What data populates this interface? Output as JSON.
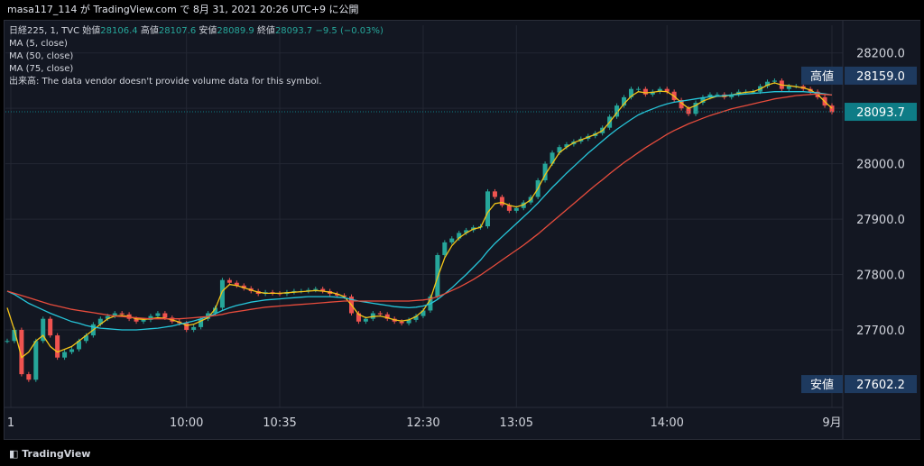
{
  "header": {
    "publish_line": "masa117_114 が TradingView.com で 8月 31, 2021 20:26 UTC+9 に公開"
  },
  "legend": {
    "symbol": "日経225, 1, TVC",
    "open_label": "始値",
    "open_value": "28106.4",
    "high_label": "高値",
    "high_value": "28107.6",
    "low_label": "安値",
    "low_value": "28089.9",
    "close_label": "終値",
    "close_value": "28093.7",
    "change": "−9.5 (−0.03%)",
    "ma5": "MA (5, close)",
    "ma50": "MA (50, close)",
    "ma75": "MA (75, close)",
    "volume_note": "出来高: The data vendor doesn't provide volume data for this symbol."
  },
  "price_labels": {
    "high_tag": "高値",
    "high_value": "28159.0",
    "last_value": "28093.7",
    "low_tag": "安値",
    "low_value": "27602.2"
  },
  "brand": {
    "name": "TradingView"
  },
  "colors": {
    "background": "#131722",
    "grid": "#232733",
    "up": "#26a69a",
    "down": "#ef5350",
    "ma5": "#f5c518",
    "ma50": "#26c6da",
    "ma75": "#e74c3c",
    "tag_bg": "#1e3a5f",
    "last_bg": "#0e7c86"
  },
  "chart_data": {
    "type": "candlestick",
    "title": "",
    "xlabel": "",
    "ylabel": "",
    "ylim": [
      27560,
      28250
    ],
    "y_ticks": [
      "28200.0",
      "28100.0",
      "28000.0",
      "27900.0",
      "27800.0",
      "27700.0"
    ],
    "x_ticks": [
      "1",
      "10:00",
      "10:35",
      "12:30",
      "13:05",
      "14:00",
      "9月"
    ],
    "grid": true,
    "series": [
      {
        "name": "日経225",
        "kind": "price",
        "x": [
          0,
          8,
          16,
          24,
          32,
          40,
          48,
          56,
          64,
          72,
          80,
          88,
          96,
          104,
          112,
          120,
          128,
          136,
          144,
          152,
          160,
          168,
          176,
          184,
          192,
          200,
          208,
          216,
          224,
          232,
          240,
          248,
          256,
          264,
          272,
          280,
          288,
          296,
          304,
          312,
          320,
          328,
          336,
          344,
          352,
          360,
          368,
          376,
          384,
          392,
          400,
          408,
          416,
          424,
          432,
          440,
          448,
          456,
          464,
          472,
          480,
          488,
          496,
          504,
          512,
          520,
          528,
          536,
          544,
          552,
          560,
          568,
          576,
          584,
          592,
          600,
          608,
          616,
          624,
          632,
          640,
          648,
          656,
          664,
          672,
          680,
          688,
          696,
          704,
          712,
          720,
          728,
          736,
          744,
          752,
          760,
          768,
          776,
          784,
          792,
          800,
          808,
          816,
          824,
          832,
          840,
          848,
          856,
          864,
          872,
          880,
          888,
          896,
          904,
          912,
          920
        ],
        "values": [
          27680,
          27700,
          27620,
          27610,
          27680,
          27720,
          27690,
          27650,
          27660,
          27665,
          27680,
          27690,
          27710,
          27720,
          27725,
          27730,
          27728,
          27720,
          27715,
          27718,
          27725,
          27730,
          27722,
          27715,
          27712,
          27700,
          27705,
          27720,
          27730,
          27740,
          27790,
          27785,
          27780,
          27775,
          27770,
          27765,
          27768,
          27766,
          27765,
          27768,
          27770,
          27770,
          27772,
          27774,
          27770,
          27765,
          27762,
          27760,
          27730,
          27715,
          27720,
          27730,
          27728,
          27720,
          27715,
          27712,
          27718,
          27725,
          27735,
          27760,
          27835,
          27858,
          27865,
          27875,
          27880,
          27885,
          27887,
          27950,
          27940,
          27925,
          27915,
          27920,
          27930,
          27940,
          27970,
          28000,
          28020,
          28030,
          28035,
          28040,
          28045,
          28050,
          28055,
          28065,
          28085,
          28105,
          28120,
          28135,
          28135,
          28125,
          28130,
          28135,
          28130,
          28115,
          28100,
          28090,
          28110,
          28120,
          28125,
          28125,
          28120,
          28125,
          28130,
          28130,
          28130,
          28140,
          28148,
          28150,
          28135,
          28140,
          28140,
          28135,
          28130,
          28120,
          28105,
          28093
        ]
      },
      {
        "name": "MA (5, close)",
        "kind": "ma",
        "color": "#f5c518",
        "values": [
          27740,
          27700,
          27650,
          27660,
          27680,
          27690,
          27670,
          27660,
          27665,
          27670,
          27680,
          27690,
          27700,
          27710,
          27720,
          27725,
          27726,
          27724,
          27720,
          27719,
          27720,
          27722,
          27721,
          27718,
          27714,
          27708,
          27710,
          27716,
          27722,
          27738,
          27770,
          27782,
          27780,
          27776,
          27772,
          27768,
          27766,
          27766,
          27766,
          27767,
          27768,
          27769,
          27770,
          27771,
          27770,
          27768,
          27765,
          27760,
          27745,
          27728,
          27722,
          27724,
          27725,
          27722,
          27718,
          27716,
          27718,
          27724,
          27735,
          27755,
          27795,
          27830,
          27852,
          27866,
          27875,
          27882,
          27885,
          27912,
          27928,
          27930,
          27925,
          27922,
          27926,
          27935,
          27955,
          27980,
          28000,
          28020,
          28030,
          28038,
          28043,
          28048,
          28053,
          28060,
          28075,
          28092,
          28108,
          28122,
          28130,
          28128,
          28129,
          28131,
          28130,
          28122,
          28110,
          28100,
          28105,
          28113,
          28118,
          28122,
          28122,
          28124,
          28127,
          28129,
          28130,
          28135,
          28142,
          28146,
          28142,
          28141,
          28139,
          28137,
          28133,
          28125,
          28112,
          28100
        ]
      },
      {
        "name": "MA (50, close)",
        "kind": "ma",
        "color": "#26c6da",
        "values": [
          27770,
          27764,
          27756,
          27748,
          27742,
          27736,
          27730,
          27725,
          27720,
          27715,
          27712,
          27708,
          27705,
          27703,
          27702,
          27701,
          27700,
          27700,
          27700,
          27701,
          27702,
          27703,
          27705,
          27707,
          27710,
          27713,
          27716,
          27720,
          27724,
          27729,
          27735,
          27740,
          27744,
          27747,
          27750,
          27752,
          27754,
          27755,
          27756,
          27757,
          27758,
          27759,
          27760,
          27760,
          27760,
          27760,
          27759,
          27758,
          27755,
          27752,
          27750,
          27748,
          27746,
          27744,
          27742,
          27741,
          27740,
          27741,
          27743,
          27747,
          27755,
          27765,
          27776,
          27788,
          27800,
          27813,
          27826,
          27842,
          27856,
          27868,
          27880,
          27892,
          27904,
          27916,
          27929,
          27943,
          27957,
          27970,
          27983,
          27995,
          28007,
          28019,
          28030,
          28041,
          28052,
          28062,
          28071,
          28080,
          28088,
          28094,
          28099,
          28104,
          28108,
          28111,
          28113,
          28115,
          28117,
          28119,
          28121,
          28122,
          28123,
          28124,
          28125,
          28126,
          28127,
          28128,
          28129,
          28130,
          28130,
          28130,
          28130,
          28130,
          28129,
          28128,
          28126,
          28124
        ]
      },
      {
        "name": "MA (75, close)",
        "kind": "ma",
        "color": "#e74c3c",
        "values": [
          27770,
          27766,
          27762,
          27758,
          27754,
          27750,
          27746,
          27743,
          27740,
          27737,
          27735,
          27733,
          27731,
          27729,
          27727,
          27725,
          27724,
          27723,
          27722,
          27721,
          27720,
          27720,
          27720,
          27720,
          27720,
          27721,
          27722,
          27723,
          27724,
          27726,
          27728,
          27731,
          27733,
          27735,
          27737,
          27739,
          27741,
          27742,
          27743,
          27744,
          27745,
          27746,
          27747,
          27748,
          27749,
          27750,
          27751,
          27752,
          27752,
          27752,
          27752,
          27752,
          27752,
          27752,
          27752,
          27752,
          27752,
          27753,
          27754,
          27756,
          27760,
          27765,
          27771,
          27777,
          27784,
          27791,
          27799,
          27808,
          27817,
          27826,
          27835,
          27844,
          27853,
          27863,
          27873,
          27884,
          27895,
          27906,
          27917,
          27928,
          27939,
          27950,
          27961,
          27971,
          27982,
          27992,
          28002,
          28011,
          28020,
          28029,
          28037,
          28045,
          28053,
          28060,
          28066,
          28072,
          28077,
          28082,
          28087,
          28091,
          28095,
          28099,
          28102,
          28105,
          28108,
          28111,
          28114,
          28117,
          28119,
          28121,
          28123,
          28124,
          28125,
          28126,
          28125,
          28124
        ]
      }
    ]
  }
}
